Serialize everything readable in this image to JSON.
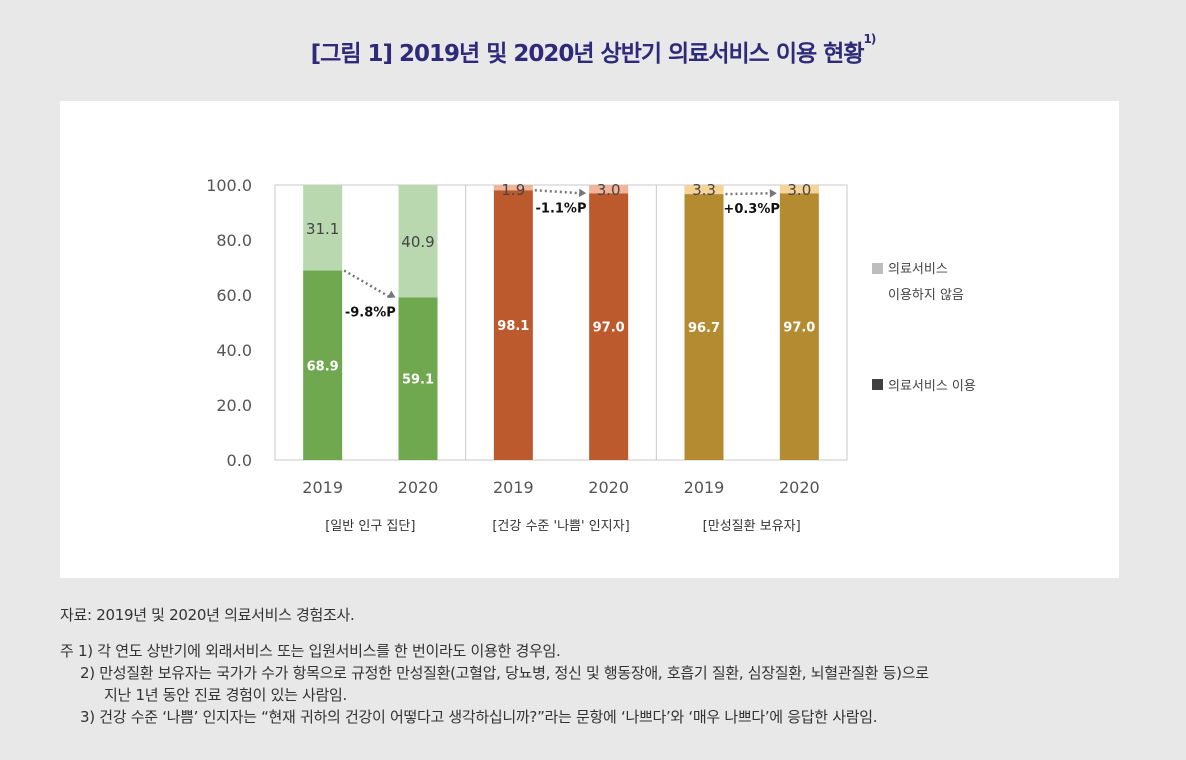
{
  "title": {
    "text": "[그림 1] 2019년 및 2020년 상반기 의료서비스 이용 현황",
    "footnote_mark": "1)"
  },
  "colors": {
    "title": "#2e2a79",
    "general_use": "#6fa84e",
    "general_not": "#b9d8b0",
    "bad_use": "#bc5a2d",
    "bad_not": "#f2b499",
    "chronic_use": "#b58b32",
    "chronic_not": "#f5d49a",
    "legend_not": "#bdbdbd",
    "legend_use": "#404040"
  },
  "chart_data": {
    "type": "bar",
    "stacked": true,
    "ylim": [
      0,
      100
    ],
    "yticks": [
      "0.0",
      "20.0",
      "40.0",
      "60.0",
      "80.0",
      "100.0"
    ],
    "groups": [
      {
        "label": "[일반 인구 집단]",
        "bars": [
          {
            "x": "2019",
            "use": 68.9,
            "not_use": 31.1,
            "use_label": "68.9",
            "not_label": "31.1"
          },
          {
            "x": "2020",
            "use": 59.1,
            "not_use": 40.9,
            "use_label": "59.1",
            "not_label": "40.9"
          }
        ],
        "change": "-9.8%P"
      },
      {
        "label": "[건강 수준 '나쁨' 인지자]",
        "bars": [
          {
            "x": "2019",
            "use": 98.1,
            "not_use": 1.9,
            "use_label": "98.1",
            "not_label": "1.9"
          },
          {
            "x": "2020",
            "use": 97.0,
            "not_use": 3.0,
            "use_label": "97.0",
            "not_label": "3.0"
          }
        ],
        "change": "-1.1%P"
      },
      {
        "label": "[만성질환 보유자]",
        "bars": [
          {
            "x": "2019",
            "use": 96.7,
            "not_use": 3.3,
            "use_label": "96.7",
            "not_label": "3.3"
          },
          {
            "x": "2020",
            "use": 97.0,
            "not_use": 3.0,
            "use_label": "97.0",
            "not_label": "3.0"
          }
        ],
        "change": "+0.3%P"
      }
    ],
    "legend": {
      "not_use_line1": "의료서비스",
      "not_use_line2": "이용하지 않음",
      "use": "의료서비스 이용"
    }
  },
  "notes": {
    "source": "자료: 2019년 및 2020년 의료서비스 경험조사.",
    "note1": "주 1) 각 연도 상반기에 외래서비스 또는 입원서비스를 한 번이라도 이용한 경우임.",
    "note2": "2) 만성질환 보유자는 국가가 수가 항목으로 규정한 만성질환(고혈압, 당뇨병, 정신 및 행동장애, 호흡기 질환, 심장질환, 뇌혈관질환 등)으로",
    "note2b": "지난 1년 동안 진료 경험이 있는 사람임.",
    "note3": "3) 건강 수준 ‘나쁨’ 인지자는 “현재 귀하의 건강이 어떻다고 생각하십니까?”라는 문항에 ‘나쁘다’와 ‘매우 나쁘다’에 응답한 사람임."
  }
}
